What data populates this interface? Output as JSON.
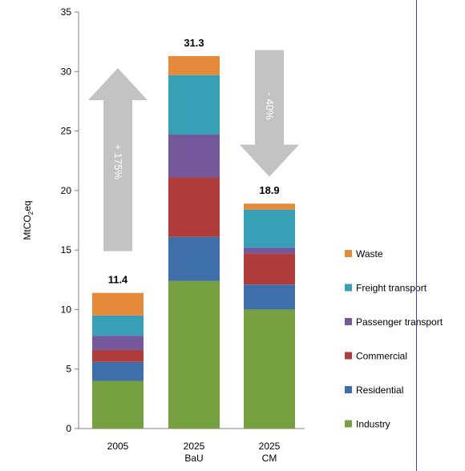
{
  "chart_data": {
    "type": "bar",
    "stacked": true,
    "categories": [
      "2005",
      "2025\nBaU",
      "2025\nCM"
    ],
    "ylabel": "MtCO",
    "ylabel_sub": "2",
    "ylabel_suffix": "eq",
    "ylim": [
      0,
      35
    ],
    "yticks": [
      0,
      5,
      10,
      15,
      20,
      25,
      30,
      35
    ],
    "grid": false,
    "legend_position": "right",
    "totals": [
      "11.4",
      "31.3",
      "18.9"
    ],
    "series": [
      {
        "name": "Industry",
        "color": "#77a040",
        "values": [
          4.0,
          12.4,
          10.0
        ]
      },
      {
        "name": "Residential",
        "color": "#3f6faa",
        "values": [
          1.6,
          3.7,
          2.1
        ]
      },
      {
        "name": "Commercial",
        "color": "#b03d3b",
        "values": [
          1.0,
          5.0,
          2.6
        ]
      },
      {
        "name": "Passenger transport",
        "color": "#75579b",
        "values": [
          1.2,
          3.6,
          0.5
        ]
      },
      {
        "name": "Freight transport",
        "color": "#37a0b6",
        "values": [
          1.7,
          5.0,
          3.2
        ]
      },
      {
        "name": "Waste",
        "color": "#e58a3a",
        "values": [
          1.9,
          1.6,
          0.5
        ]
      }
    ],
    "annotations": [
      {
        "text": "+ 175%",
        "direction": "up",
        "from": 14.9,
        "to": 31.3
      },
      {
        "text": "- 40%",
        "direction": "down",
        "from": 31.8,
        "to": 21.7
      }
    ],
    "arrow_color": "#c3c3c3"
  }
}
